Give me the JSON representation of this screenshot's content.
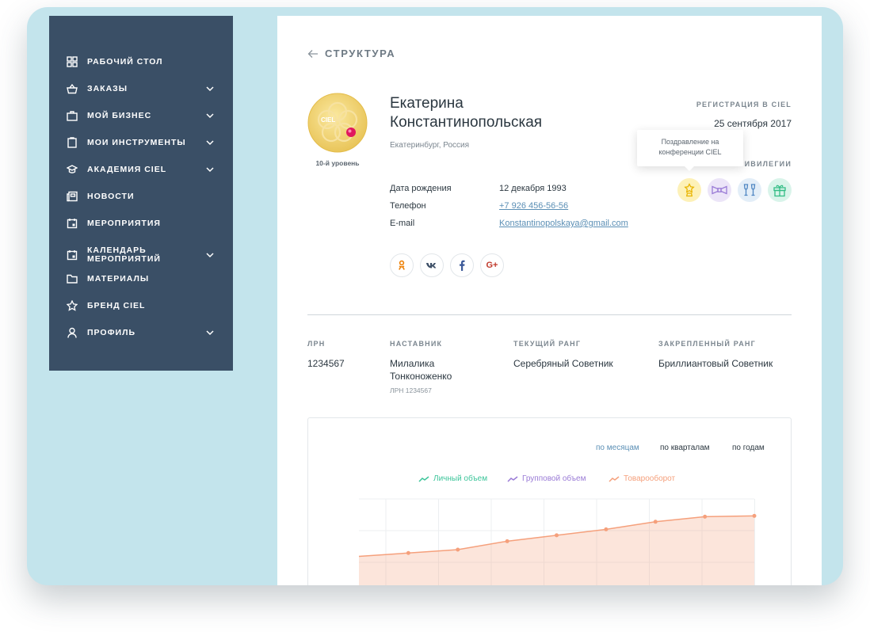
{
  "sidebar": {
    "items": [
      {
        "label": "РАБОЧИЙ СТОЛ",
        "icon": "dashboard-icon",
        "has_submenu": false
      },
      {
        "label": "ЗАКАЗЫ",
        "icon": "basket-icon",
        "has_submenu": true
      },
      {
        "label": "МОЙ БИЗНЕС",
        "icon": "briefcase-icon",
        "has_submenu": true
      },
      {
        "label": "МОИ ИНСТРУМЕНТЫ",
        "icon": "clipboard-icon",
        "has_submenu": true
      },
      {
        "label": "АКАДЕМИЯ CIEL",
        "icon": "graduation-cap-icon",
        "has_submenu": true
      },
      {
        "label": "НОВОСТИ",
        "icon": "newspaper-icon",
        "has_submenu": false
      },
      {
        "label": "МЕРОПРИЯТИЯ",
        "icon": "calendar-icon",
        "has_submenu": false
      },
      {
        "label": "КАЛЕНДАРЬ",
        "label2": "МЕРОПРИЯТИЙ",
        "icon": "calendar-icon",
        "has_submenu": true
      },
      {
        "label": "МАТЕРИАЛЫ",
        "icon": "folder-icon",
        "has_submenu": false
      },
      {
        "label": "БРЕНД CIEL",
        "icon": "star-icon",
        "has_submenu": false
      },
      {
        "label": "ПРОФИЛЬ",
        "icon": "user-icon",
        "has_submenu": true
      }
    ]
  },
  "header": {
    "back_label": "СТРУКТУРА"
  },
  "profile": {
    "first_name": "Екатерина",
    "last_name": "Константинопольская",
    "location": "Екатеринбург, Россия",
    "level": "10-й уровень",
    "avatar_logo_text": "CIEL",
    "birth_label": "Дата рождения",
    "birth_value": "12 декабря 1993",
    "phone_label": "Телефон",
    "phone_value": "+7 926 456-56-56",
    "email_label": "E-mail",
    "email_value": "Konstantinopolskaya@gmail.com",
    "social": [
      {
        "name": "odnoklassniki",
        "icon": "odnoklassniki-icon",
        "color": "#ee8208"
      },
      {
        "name": "vk",
        "icon": "vk-icon",
        "color": "#3d4f66"
      },
      {
        "name": "facebook",
        "icon": "facebook-icon",
        "color": "#3b5998"
      },
      {
        "name": "google-plus",
        "label": "G+",
        "icon": "google-plus-icon",
        "color": "#c0392b"
      }
    ]
  },
  "registration": {
    "label": "РЕГИСТРАЦИЯ В CIEL",
    "value": "25 сентября 2017"
  },
  "privileges": {
    "label": "ПРИВИЛЕГИИ",
    "tooltip": "Поздравление на конференции CIEL",
    "items": [
      {
        "icon": "trophy-star-icon",
        "bg": "#fdf1b8",
        "color": "#e8b400"
      },
      {
        "icon": "bow-tie-icon",
        "bg": "#ece5f8",
        "color": "#9a7bd6"
      },
      {
        "icon": "champagne-glasses-icon",
        "bg": "#e3eef8",
        "color": "#4f86c2"
      },
      {
        "icon": "gift-icon",
        "bg": "#d9f4ea",
        "color": "#33bd85"
      }
    ]
  },
  "details": {
    "lrn_label": "ЛРН",
    "lrn_value": "1234567",
    "mentor_label": "НАСТАВНИК",
    "mentor_line1": "Милалика",
    "mentor_line2": "Тонконоженко",
    "mentor_sub": "ЛРН 1234567",
    "rank_label": "ТЕКУЩИЙ РАНГ",
    "rank_value": "Серебряный Советник",
    "fixed_rank_label": "ЗАКРЕПЛЕННЫЙ РАНГ",
    "fixed_rank_value": "Бриллиантовый Советник"
  },
  "chart": {
    "periods": [
      {
        "label": "по месяцам",
        "active": true
      },
      {
        "label": "по кварталам",
        "active": false
      },
      {
        "label": "по годам",
        "active": false
      }
    ],
    "legend": [
      {
        "label": "Личный объем",
        "color": "#3cc59a"
      },
      {
        "label": "Групповой объем",
        "color": "#9a7bd6"
      },
      {
        "label": "Товарооборот",
        "color": "#f5a07c"
      }
    ]
  },
  "chart_data": {
    "type": "area",
    "series": [
      {
        "name": "Товарооборот",
        "values": [
          82,
          86,
          90,
          100,
          107,
          114,
          123,
          129,
          130
        ]
      }
    ],
    "ylim": [
      0,
      150
    ],
    "grid": true
  }
}
